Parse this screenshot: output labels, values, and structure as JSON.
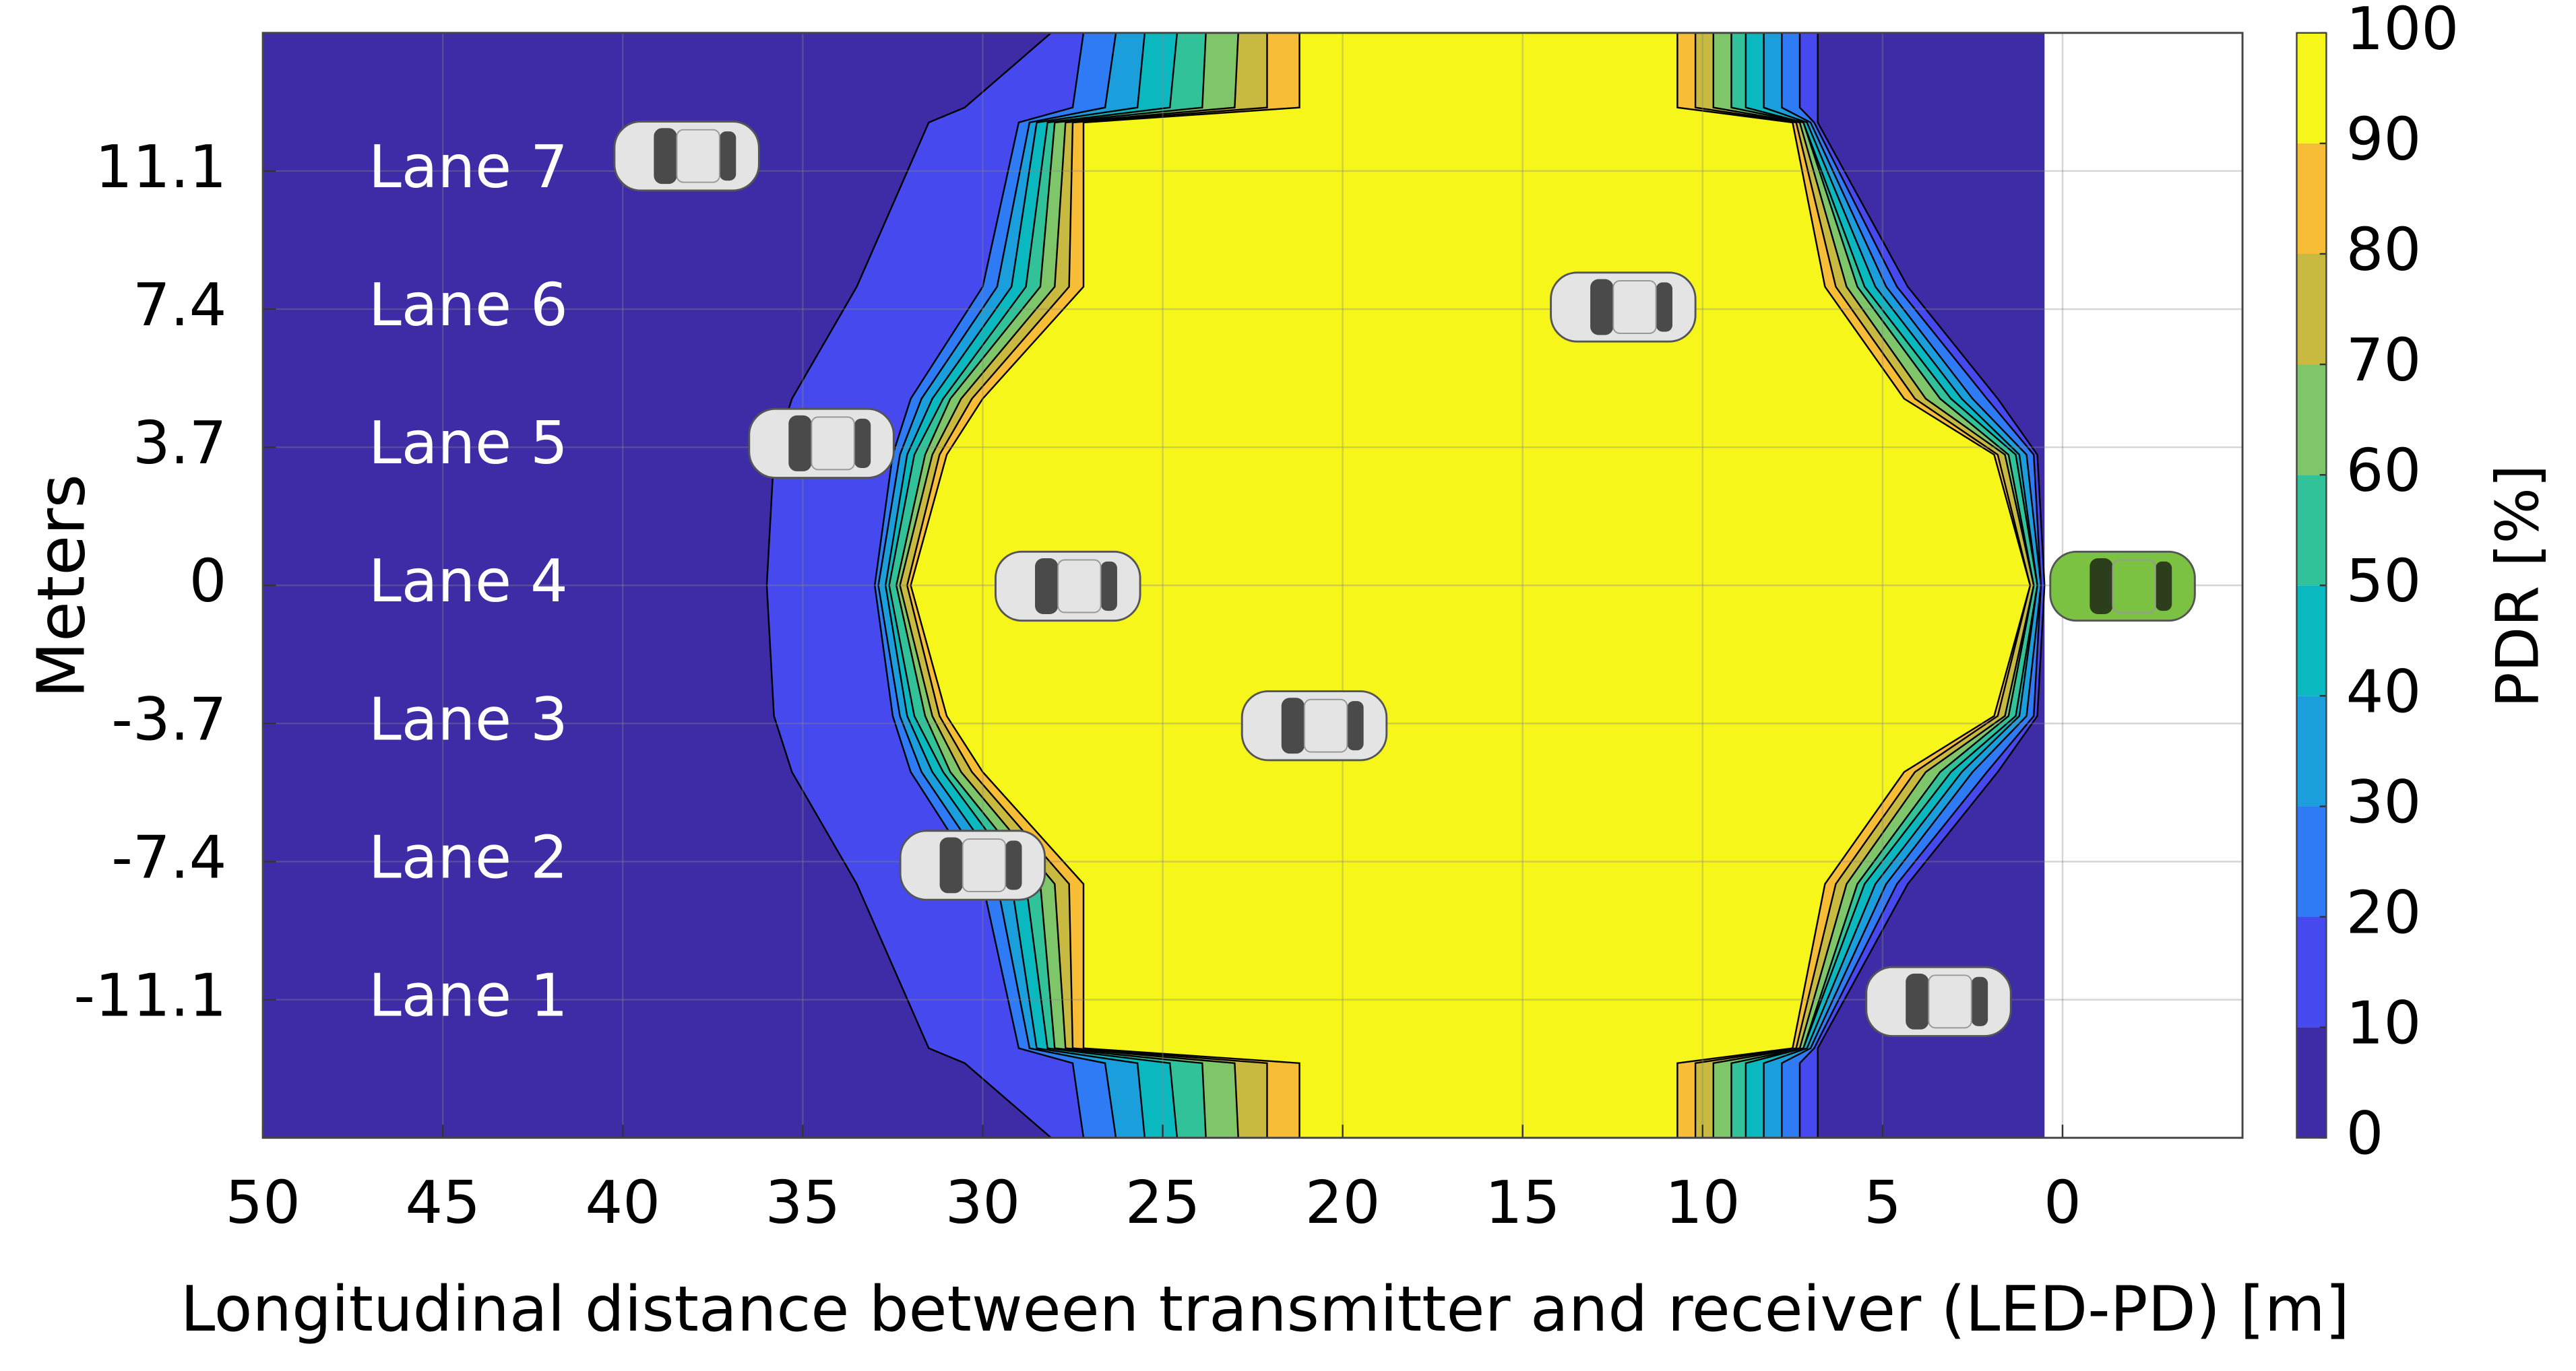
{
  "chart_data": {
    "type": "contour",
    "xlabel": "Longitudinal distance between transmitter and receiver (LED-PD) [m]",
    "ylabel": "Meters",
    "colorbar_label": "PDR [%]",
    "xlim": [
      50,
      -5
    ],
    "xticks": [
      50,
      45,
      40,
      35,
      30,
      25,
      20,
      15,
      10,
      5,
      0
    ],
    "ylim": [
      -14.8,
      14.8
    ],
    "yticks": [
      -11.1,
      -7.4,
      -3.7,
      0,
      3.7,
      7.4,
      11.1
    ],
    "lanes": [
      "Lane 1",
      "Lane 2",
      "Lane 3",
      "Lane 4",
      "Lane 5",
      "Lane 6",
      "Lane 7"
    ],
    "clim": [
      0,
      100
    ],
    "cticks": [
      0,
      10,
      20,
      30,
      40,
      50,
      60,
      70,
      80,
      90,
      100
    ],
    "colors": [
      "#3e2ba6",
      "#4649ee",
      "#2f7af5",
      "#1b9fdc",
      "#0ab8c0",
      "#32c29a",
      "#7fc66a",
      "#c8b940",
      "#f7bd37",
      "#f6f61a"
    ],
    "field_x": [
      50,
      0.5
    ],
    "y_samples": [
      14.8,
      12.8,
      12.4,
      8,
      5,
      3.5,
      0,
      -3.5,
      -5,
      -8,
      -12.4,
      -12.8,
      -14.8
    ],
    "contours": [
      {
        "left": [
          28.1,
          30.5,
          31.5,
          33.5,
          35.3,
          35.8,
          36.0,
          35.8,
          35.3,
          33.5,
          31.5,
          30.5,
          28.1
        ],
        "right": [
          6.8,
          6.8,
          6.8,
          4.3,
          1.8,
          0.7,
          0.5,
          0.7,
          1.8,
          4.3,
          6.8,
          6.8,
          6.8
        ]
      },
      {
        "left": [
          27.2,
          27.5,
          29.0,
          30.0,
          32.0,
          32.5,
          33.0,
          32.5,
          32.0,
          30.0,
          29.0,
          27.5,
          27.2
        ],
        "right": [
          7.3,
          7.3,
          6.9,
          4.6,
          2.1,
          0.8,
          0.6,
          0.8,
          2.1,
          4.6,
          6.9,
          7.3,
          7.3
        ]
      },
      {
        "left": [
          26.3,
          26.6,
          28.7,
          29.6,
          31.7,
          32.3,
          32.9,
          32.3,
          31.7,
          29.6,
          28.7,
          26.6,
          26.3
        ],
        "right": [
          7.8,
          7.8,
          7.0,
          4.9,
          2.5,
          1.0,
          0.6,
          1.0,
          2.5,
          4.9,
          7.0,
          7.8,
          7.8
        ]
      },
      {
        "left": [
          25.5,
          25.7,
          28.5,
          29.2,
          31.4,
          32.1,
          32.7,
          32.1,
          31.4,
          29.2,
          28.5,
          25.7,
          25.5
        ],
        "right": [
          8.3,
          8.3,
          7.1,
          5.2,
          2.8,
          1.2,
          0.7,
          1.2,
          2.8,
          5.2,
          7.1,
          8.3,
          8.3
        ]
      },
      {
        "left": [
          24.6,
          24.8,
          28.2,
          28.8,
          31.1,
          31.9,
          32.6,
          31.9,
          31.1,
          28.8,
          28.2,
          24.8,
          24.6
        ],
        "right": [
          8.8,
          8.8,
          7.2,
          5.5,
          3.1,
          1.3,
          0.7,
          1.3,
          3.1,
          5.5,
          7.2,
          8.8,
          8.8
        ]
      },
      {
        "left": [
          23.8,
          23.9,
          28.0,
          28.4,
          30.9,
          31.6,
          32.4,
          31.6,
          30.9,
          28.4,
          28.0,
          23.9,
          23.8
        ],
        "right": [
          9.2,
          9.2,
          7.2,
          5.7,
          3.4,
          1.5,
          0.8,
          1.5,
          3.4,
          5.7,
          7.2,
          9.2,
          9.2
        ]
      },
      {
        "left": [
          22.9,
          23.0,
          27.7,
          28.0,
          30.6,
          31.4,
          32.3,
          31.4,
          30.6,
          28.0,
          27.7,
          23.0,
          22.9
        ],
        "right": [
          9.7,
          9.7,
          7.3,
          6.0,
          3.8,
          1.6,
          0.8,
          1.6,
          3.8,
          6.0,
          7.3,
          9.7,
          9.7
        ]
      },
      {
        "left": [
          22.1,
          22.1,
          27.5,
          27.6,
          30.3,
          31.2,
          32.1,
          31.2,
          30.3,
          27.6,
          27.5,
          22.1,
          22.1
        ],
        "right": [
          10.2,
          10.2,
          7.4,
          6.3,
          4.1,
          1.8,
          0.9,
          1.8,
          4.1,
          6.3,
          7.4,
          10.2,
          10.2
        ]
      },
      {
        "left": [
          21.2,
          21.2,
          27.2,
          27.2,
          30.0,
          31.0,
          32.0,
          31.0,
          30.0,
          27.2,
          27.2,
          21.2,
          21.2
        ],
        "right": [
          10.7,
          10.7,
          7.5,
          6.6,
          4.4,
          1.9,
          0.9,
          1.9,
          4.4,
          6.6,
          7.5,
          10.7,
          10.7
        ]
      }
    ],
    "grid": true
  }
}
